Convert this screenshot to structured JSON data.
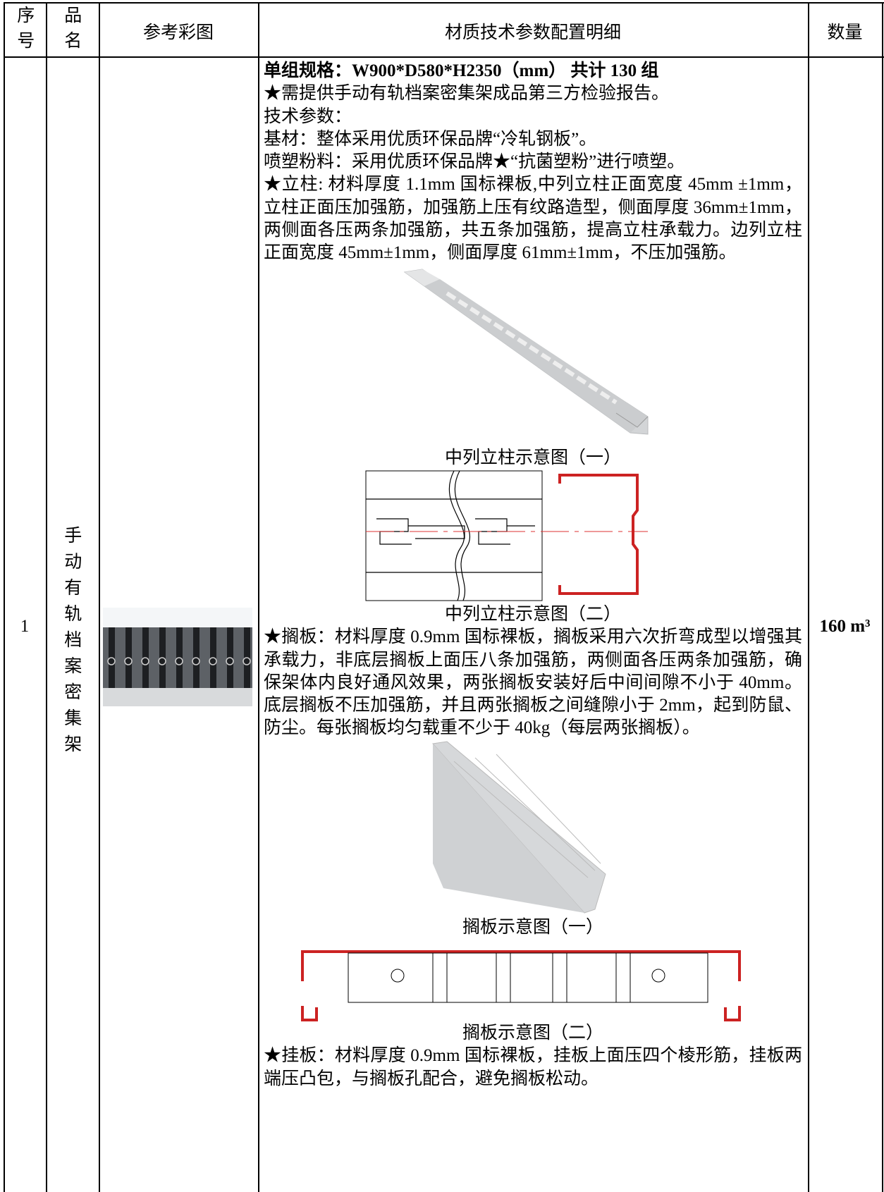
{
  "header": {
    "columns": [
      "序号",
      "品名",
      "参考彩图",
      "材质技术参数配置明细",
      "数量"
    ]
  },
  "table": {
    "rows": [
      {
        "no": "1",
        "name": "手动有轨档案密集架",
        "quantity": "160 m³",
        "detail": {
          "lines": [
            "单组规格：W900*D580*H2350（mm） 共计 130 组",
            "★需提供手动有轨档案密集架成品第三方检验报告。",
            "技术参数：",
            "基材：整体采用优质环保品牌“冷轧钢板”。",
            "喷塑粉料：采用优质环保品牌★“抗菌塑粉”进行喷塑。",
            "★立柱: 材料厚度 1.1mm 国标裸板,中列立柱正面宽度 45mm ±1mm，立柱正面压加强筋，加强筋上压有纹路造型，侧面厚度 36mm±1mm，两侧面各压两条加强筋，共五条加强筋，提高立柱承载力。边列立柱正面宽度 45mm±1mm，侧面厚度 61mm±1mm，不压加强筋。",
            "★搁板：材料厚度 0.9mm 国标裸板，搁板采用六次折弯成型以增强其承载力，非底层搁板上面压八条加强筋，两侧面各压两条加强筋，确保架体内良好通风效果，两张搁板安装好后中间间隙不小于 40mm。底层搁板不压加强筋，并且两张搁板之间缝隙小于 2mm，起到防鼠、防尘。每张搁板均匀载重不少于 40kg（每层两张搁板）。",
            "★挂板：材料厚度 0.9mm 国标裸板，挂板上面压四个棱形筋，挂板两端压凸包，与搁板孔配合，避免搁板松动。"
          ],
          "captions": [
            "中列立柱示意图（一）",
            "中列立柱示意图（二）",
            "搁板示意图（一）",
            "搁板示意图（二）"
          ]
        }
      }
    ]
  }
}
